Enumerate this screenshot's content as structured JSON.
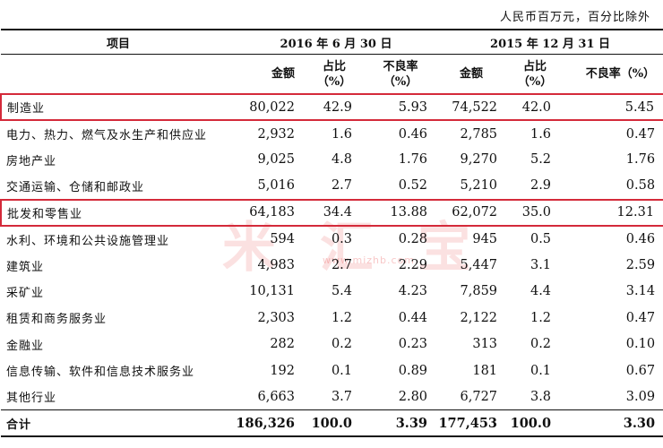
{
  "unit_note": "人民币百万元，百分比除外",
  "watermark": {
    "big_text": "米 汇 宝",
    "site": "www.mizhb.com"
  },
  "header": {
    "item_label": "项目",
    "period_2016": "2016 年 6 月 30 日",
    "period_2015": "2015 年 12 月 31 日",
    "amount_label": "金额",
    "share_label_line1": "占比",
    "share_label_line2": "（%）",
    "npl_label_line1": "不良率",
    "npl_label_line2": "（%）",
    "amount_label_2015": "金额",
    "share_label_2015_line1": "占比",
    "share_label_2015_line2": "（%）",
    "npl_label_2015": "不良率（%）"
  },
  "rows": [
    {
      "name": "制造业",
      "amt16": "80,022",
      "pct16": "42.9",
      "npl16": "5.93",
      "amt15": "74,522",
      "pct15": "42.0",
      "npl15": "5.45",
      "highlight": true
    },
    {
      "name": "电力、热力、燃气及水生产和供应业",
      "amt16": "2,932",
      "pct16": "1.6",
      "npl16": "0.46",
      "amt15": "2,785",
      "pct15": "1.6",
      "npl15": "0.47"
    },
    {
      "name": "房地产业",
      "amt16": "9,025",
      "pct16": "4.8",
      "npl16": "1.76",
      "amt15": "9,270",
      "pct15": "5.2",
      "npl15": "1.76"
    },
    {
      "name": "交通运输、仓储和邮政业",
      "amt16": "5,016",
      "pct16": "2.7",
      "npl16": "0.52",
      "amt15": "5,210",
      "pct15": "2.9",
      "npl15": "0.58"
    },
    {
      "name": "批发和零售业",
      "amt16": "64,183",
      "pct16": "34.4",
      "npl16": "13.88",
      "amt15": "62,072",
      "pct15": "35.0",
      "npl15": "12.31",
      "highlight": true
    },
    {
      "name": "水利、环境和公共设施管理业",
      "amt16": "594",
      "pct16": "0.3",
      "npl16": "0.28",
      "amt15": "945",
      "pct15": "0.5",
      "npl15": "0.46"
    },
    {
      "name": "建筑业",
      "amt16": "4,983",
      "pct16": "2.7",
      "npl16": "2.29",
      "amt15": "5,447",
      "pct15": "3.1",
      "npl15": "2.59"
    },
    {
      "name": "采矿业",
      "amt16": "10,131",
      "pct16": "5.4",
      "npl16": "4.23",
      "amt15": "7,859",
      "pct15": "4.4",
      "npl15": "3.14"
    },
    {
      "name": "租赁和商务服务业",
      "amt16": "2,303",
      "pct16": "1.2",
      "npl16": "0.44",
      "amt15": "2,122",
      "pct15": "1.2",
      "npl15": "0.47"
    },
    {
      "name": "金融业",
      "amt16": "282",
      "pct16": "0.2",
      "npl16": "0.23",
      "amt15": "313",
      "pct15": "0.2",
      "npl15": "0.10"
    },
    {
      "name": "信息传输、软件和信息技术服务业",
      "amt16": "192",
      "pct16": "0.1",
      "npl16": "0.89",
      "amt15": "181",
      "pct15": "0.1",
      "npl15": "0.67"
    },
    {
      "name": "其他行业",
      "amt16": "6,663",
      "pct16": "3.7",
      "npl16": "2.80",
      "amt15": "6,727",
      "pct15": "3.8",
      "npl15": "3.09"
    },
    {
      "name": "合计",
      "amt16": "186,326",
      "pct16": "100.0",
      "npl16": "3.39",
      "amt15": "177,453",
      "pct15": "100.0",
      "npl15": "3.30",
      "total": true
    }
  ],
  "colors": {
    "highlight_border": "#d42a3a",
    "watermark": "#e84646"
  }
}
